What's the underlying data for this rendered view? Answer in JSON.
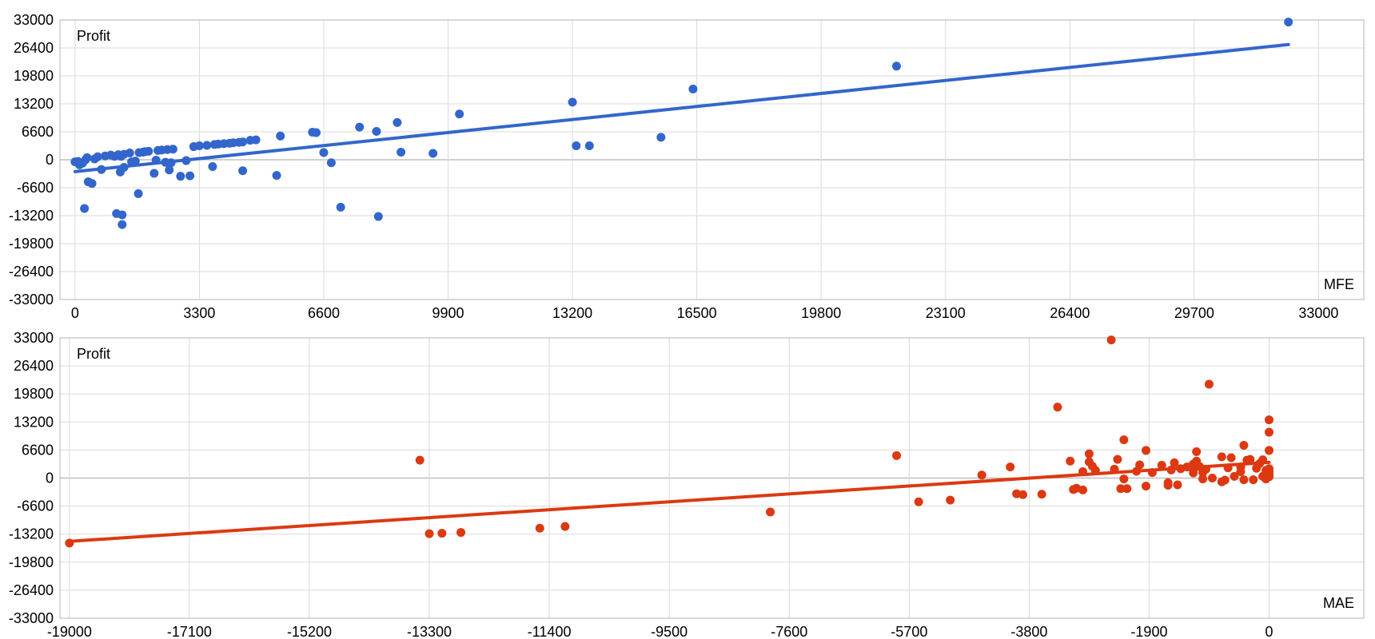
{
  "chart_data": [
    {
      "type": "scatter",
      "ylabel": "Profit",
      "xlabel": "MFE",
      "color": "#3366cc",
      "xlim": [
        -400,
        34200
      ],
      "ylim": [
        -33000,
        33000
      ],
      "xticks": [
        "0",
        "3300",
        "6600",
        "9900",
        "13200",
        "16500",
        "19800",
        "23100",
        "26400",
        "29700",
        "33000"
      ],
      "yticks": [
        "33000",
        "26400",
        "19800",
        "13200",
        "6600",
        "0",
        "-6600",
        "-13200",
        "-19800",
        "-26400",
        "-33000"
      ],
      "xtick_values": [
        0,
        3300,
        6600,
        9900,
        13200,
        16500,
        19800,
        23100,
        26400,
        29700,
        33000
      ],
      "ytick_values": [
        33000,
        26400,
        19800,
        13200,
        6600,
        0,
        -6600,
        -13200,
        -19800,
        -26400,
        -33000
      ],
      "trendline": {
        "x": [
          0,
          32200
        ],
        "y": [
          -2800,
          27200
        ]
      },
      "points": [
        [
          0,
          -500
        ],
        [
          80,
          -400
        ],
        [
          120,
          -1200
        ],
        [
          200,
          -800
        ],
        [
          280,
          0
        ],
        [
          320,
          500
        ],
        [
          250,
          -11500
        ],
        [
          350,
          -5200
        ],
        [
          450,
          -5600
        ],
        [
          520,
          200
        ],
        [
          600,
          700
        ],
        [
          700,
          -2300
        ],
        [
          800,
          900
        ],
        [
          950,
          1100
        ],
        [
          1050,
          800
        ],
        [
          1100,
          -12700
        ],
        [
          1150,
          1200
        ],
        [
          1200,
          -2900
        ],
        [
          1220,
          800
        ],
        [
          1250,
          -13000
        ],
        [
          1250,
          -15300
        ],
        [
          1300,
          1300
        ],
        [
          1300,
          -1800
        ],
        [
          1450,
          1600
        ],
        [
          1500,
          -500
        ],
        [
          1600,
          -300
        ],
        [
          1680,
          -8000
        ],
        [
          1700,
          1700
        ],
        [
          1800,
          1800
        ],
        [
          1850,
          1900
        ],
        [
          1950,
          2000
        ],
        [
          2100,
          -3200
        ],
        [
          2150,
          -100
        ],
        [
          2200,
          2200
        ],
        [
          2300,
          2300
        ],
        [
          2400,
          -600
        ],
        [
          2450,
          2400
        ],
        [
          2500,
          -2400
        ],
        [
          2550,
          -700
        ],
        [
          2600,
          2500
        ],
        [
          2800,
          -3900
        ],
        [
          2950,
          -200
        ],
        [
          3050,
          -3800
        ],
        [
          3150,
          3100
        ],
        [
          3300,
          3300
        ],
        [
          3500,
          3400
        ],
        [
          3650,
          -1600
        ],
        [
          3700,
          3600
        ],
        [
          3800,
          3700
        ],
        [
          3950,
          3800
        ],
        [
          4100,
          3900
        ],
        [
          4200,
          4000
        ],
        [
          4350,
          4100
        ],
        [
          4450,
          4200
        ],
        [
          4450,
          -2600
        ],
        [
          4650,
          4600
        ],
        [
          4800,
          4700
        ],
        [
          5350,
          -3700
        ],
        [
          5450,
          5600
        ],
        [
          6300,
          6500
        ],
        [
          6400,
          6400
        ],
        [
          6600,
          1700
        ],
        [
          6800,
          -700
        ],
        [
          7050,
          -11200
        ],
        [
          7550,
          7700
        ],
        [
          8000,
          6700
        ],
        [
          8050,
          -13400
        ],
        [
          8550,
          8800
        ],
        [
          8650,
          1800
        ],
        [
          9500,
          1500
        ],
        [
          10200,
          10800
        ],
        [
          13200,
          13600
        ],
        [
          13300,
          3300
        ],
        [
          13650,
          3300
        ],
        [
          15550,
          5300
        ],
        [
          16400,
          16700
        ],
        [
          21800,
          22100
        ],
        [
          32200,
          32500
        ]
      ]
    },
    {
      "type": "scatter",
      "ylabel": "Profit",
      "xlabel": "MAE",
      "color": "#dc3912",
      "xlim": [
        -19150,
        1500
      ],
      "ylim": [
        -33000,
        33000
      ],
      "xticks": [
        "-19000",
        "-17100",
        "-15200",
        "-13300",
        "-11400",
        "-9500",
        "-7600",
        "-5700",
        "-3800",
        "-1900",
        "0"
      ],
      "yticks": [
        "33000",
        "26400",
        "19800",
        "13200",
        "6600",
        "0",
        "-6600",
        "-13200",
        "-19800",
        "-26400",
        "-33000"
      ],
      "xtick_values": [
        -19000,
        -17100,
        -15200,
        -13300,
        -11400,
        -9500,
        -7600,
        -5700,
        -3800,
        -1900,
        0
      ],
      "ytick_values": [
        33000,
        26400,
        19800,
        13200,
        6600,
        0,
        -6600,
        -13200,
        -19800,
        -26400,
        -33000
      ],
      "trendline": {
        "x": [
          -19000,
          0
        ],
        "y": [
          -14900,
          3700
        ]
      },
      "points": [
        [
          -19000,
          -15300
        ],
        [
          -13450,
          4200
        ],
        [
          -13300,
          -13100
        ],
        [
          -13100,
          -13000
        ],
        [
          -12800,
          -12800
        ],
        [
          -11550,
          -11800
        ],
        [
          -11150,
          -11400
        ],
        [
          -7900,
          -8000
        ],
        [
          -5900,
          5300
        ],
        [
          -5550,
          -5600
        ],
        [
          -5050,
          -5200
        ],
        [
          -4550,
          700
        ],
        [
          -4100,
          2600
        ],
        [
          -4000,
          -3700
        ],
        [
          -3900,
          -3900
        ],
        [
          -3600,
          -3800
        ],
        [
          -3350,
          16700
        ],
        [
          -3150,
          4000
        ],
        [
          -3100,
          -2700
        ],
        [
          -3050,
          -2400
        ],
        [
          -2950,
          1500
        ],
        [
          -2950,
          -2800
        ],
        [
          -2850,
          5700
        ],
        [
          -2850,
          3800
        ],
        [
          -2800,
          2800
        ],
        [
          -2750,
          1800
        ],
        [
          -2500,
          32500
        ],
        [
          -2450,
          2100
        ],
        [
          -2400,
          4400
        ],
        [
          -2350,
          -2500
        ],
        [
          -2300,
          9000
        ],
        [
          -2300,
          -200
        ],
        [
          -2250,
          -2500
        ],
        [
          -2100,
          1600
        ],
        [
          -2050,
          3100
        ],
        [
          -1950,
          -1900
        ],
        [
          -1950,
          6500
        ],
        [
          -1850,
          1300
        ],
        [
          -1700,
          3000
        ],
        [
          -1600,
          -1100
        ],
        [
          -1600,
          -1700
        ],
        [
          -1550,
          1900
        ],
        [
          -1500,
          3600
        ],
        [
          -1450,
          -1600
        ],
        [
          -1400,
          2200
        ],
        [
          -1300,
          2600
        ],
        [
          -1200,
          3300
        ],
        [
          -1200,
          2000
        ],
        [
          -1200,
          1200
        ],
        [
          -1150,
          6200
        ],
        [
          -1150,
          4000
        ],
        [
          -1100,
          2700
        ],
        [
          -1050,
          1300
        ],
        [
          -1050,
          -200
        ],
        [
          -1000,
          2100
        ],
        [
          -950,
          22100
        ],
        [
          -900,
          0
        ],
        [
          -750,
          -900
        ],
        [
          -750,
          5000
        ],
        [
          -700,
          -500
        ],
        [
          -650,
          2400
        ],
        [
          -600,
          4800
        ],
        [
          -550,
          400
        ],
        [
          -450,
          2600
        ],
        [
          -450,
          1500
        ],
        [
          -400,
          -400
        ],
        [
          -400,
          7700
        ],
        [
          -350,
          4200
        ],
        [
          -300,
          4400
        ],
        [
          -250,
          -400
        ],
        [
          -200,
          2300
        ],
        [
          -150,
          3400
        ],
        [
          -100,
          4300
        ],
        [
          -100,
          400
        ],
        [
          -50,
          -200
        ],
        [
          -50,
          1800
        ],
        [
          0,
          2200
        ],
        [
          0,
          1600
        ],
        [
          0,
          1200
        ],
        [
          0,
          900
        ],
        [
          0,
          600
        ],
        [
          0,
          300
        ],
        [
          0,
          13700
        ],
        [
          0,
          10800
        ],
        [
          0,
          6500
        ]
      ]
    }
  ]
}
